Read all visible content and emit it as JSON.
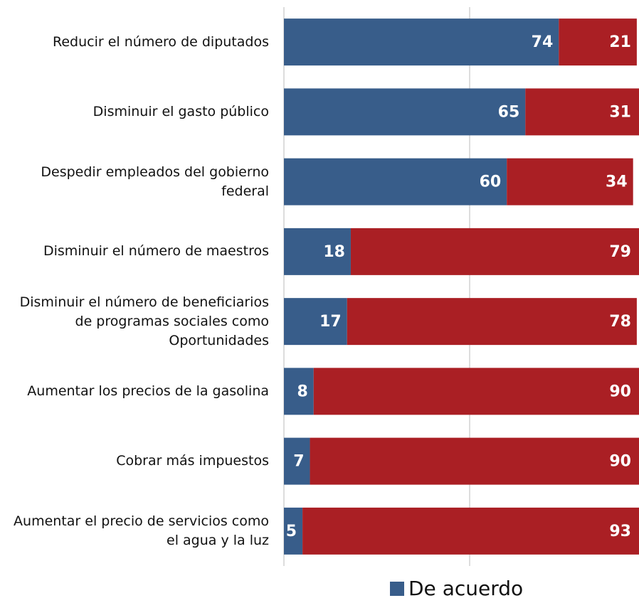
{
  "chart_data": {
    "type": "stacked-barh",
    "categories": [
      "Reducir el número de diputados",
      "Disminuir el gasto público",
      "Despedir empleados del gobierno federal",
      "Disminuir el número de maestros",
      "Disminuir el número de beneficiarios de programas sociales como Oportunidades",
      "Aumentar los precios de la gasolina",
      "Cobrar más impuestos",
      "Aumentar el precio de servicios como el agua y la luz"
    ],
    "series": [
      {
        "name": "De acuerdo",
        "color": "#385d8a",
        "values": [
          74,
          65,
          60,
          18,
          17,
          8,
          7,
          5
        ]
      },
      {
        "color": "#aa1f24",
        "values": [
          21,
          31,
          34,
          79,
          78,
          90,
          90,
          93
        ]
      }
    ],
    "xlim": [
      0,
      100
    ],
    "xticks": [
      0,
      50,
      100
    ],
    "grid": true,
    "legend": "bottom"
  }
}
